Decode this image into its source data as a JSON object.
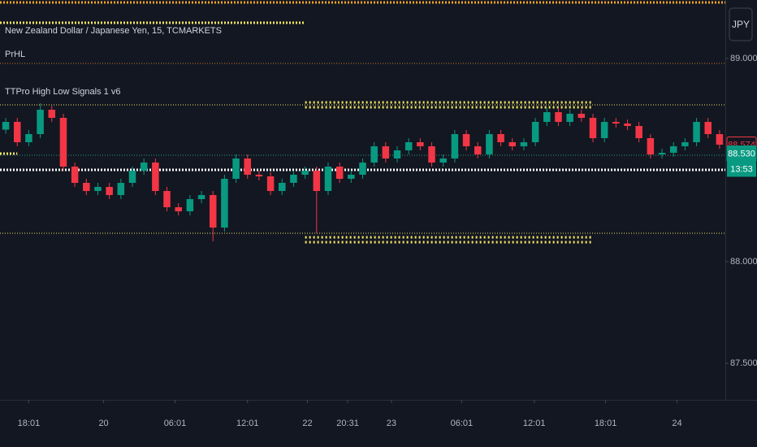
{
  "chart_data": {
    "type": "candlestick",
    "title": "New Zealand Dollar / Japanese Yen, 15, TCMARKETS",
    "indicators": [
      "PrHL",
      "TTPro High Low Signals 1 v6"
    ],
    "currency": "JPY",
    "up_color": "#089981",
    "down_color": "#f23645",
    "open": [
      88.65,
      88.688,
      88.588,
      88.628,
      88.748,
      88.708,
      88.468,
      88.388,
      88.348,
      88.368,
      88.328,
      88.388,
      88.448,
      88.488,
      88.348,
      88.268,
      88.248,
      88.308,
      88.328,
      88.168,
      88.408,
      88.508,
      88.428,
      88.42,
      88.348,
      88.388,
      88.428,
      88.448,
      88.348,
      88.468,
      88.408,
      88.428,
      88.488,
      88.568,
      88.508,
      88.548,
      88.588,
      88.568,
      88.488,
      88.508,
      88.628,
      88.568,
      88.528,
      88.628,
      88.588,
      88.568,
      88.588,
      88.688,
      88.736,
      88.688,
      88.728,
      88.708,
      88.608,
      88.688,
      88.68,
      88.668,
      88.608,
      88.528,
      88.536,
      88.568,
      88.588,
      88.688,
      88.628
    ],
    "high": [
      88.708,
      88.708,
      88.648,
      88.78,
      88.768,
      88.728,
      88.488,
      88.408,
      88.388,
      88.388,
      88.408,
      88.468,
      88.508,
      88.508,
      88.368,
      88.288,
      88.328,
      88.348,
      88.348,
      88.428,
      88.528,
      88.528,
      88.448,
      88.44,
      88.408,
      88.448,
      88.468,
      88.468,
      88.488,
      88.488,
      88.448,
      88.508,
      88.588,
      88.588,
      88.568,
      88.608,
      88.608,
      88.588,
      88.528,
      88.648,
      88.648,
      88.588,
      88.648,
      88.648,
      88.608,
      88.608,
      88.708,
      88.756,
      88.756,
      88.748,
      88.748,
      88.728,
      88.708,
      88.708,
      88.7,
      88.688,
      88.628,
      88.556,
      88.588,
      88.608,
      88.708,
      88.708,
      88.648
    ],
    "low": [
      88.63,
      88.568,
      88.568,
      88.608,
      88.688,
      88.448,
      88.368,
      88.328,
      88.328,
      88.308,
      88.308,
      88.368,
      88.428,
      88.328,
      88.248,
      88.228,
      88.228,
      88.288,
      88.1,
      88.148,
      88.388,
      88.408,
      88.4,
      88.328,
      88.328,
      88.368,
      88.408,
      88.14,
      88.328,
      88.388,
      88.388,
      88.408,
      88.468,
      88.488,
      88.488,
      88.528,
      88.548,
      88.468,
      88.468,
      88.488,
      88.548,
      88.508,
      88.508,
      88.568,
      88.548,
      88.548,
      88.568,
      88.668,
      88.668,
      88.668,
      88.688,
      88.588,
      88.588,
      88.66,
      88.648,
      88.588,
      88.508,
      88.508,
      88.516,
      88.548,
      88.568,
      88.608,
      88.556
    ],
    "close": [
      88.688,
      88.588,
      88.628,
      88.748,
      88.708,
      88.468,
      88.388,
      88.348,
      88.368,
      88.328,
      88.388,
      88.448,
      88.488,
      88.348,
      88.268,
      88.248,
      88.308,
      88.328,
      88.168,
      88.408,
      88.508,
      88.428,
      88.42,
      88.348,
      88.388,
      88.428,
      88.448,
      88.348,
      88.468,
      88.408,
      88.428,
      88.488,
      88.568,
      88.508,
      88.548,
      88.588,
      88.568,
      88.488,
      88.508,
      88.628,
      88.568,
      88.528,
      88.628,
      88.588,
      88.568,
      88.588,
      88.688,
      88.736,
      88.688,
      88.728,
      88.708,
      88.608,
      88.688,
      88.68,
      88.668,
      88.608,
      88.528,
      88.536,
      88.568,
      88.588,
      88.688,
      88.628,
      88.576
    ],
    "xlim": [
      -0.5,
      62.5
    ],
    "xticks": [
      {
        "value": 2.0,
        "label": "18:01"
      },
      {
        "value": 8.5,
        "label": "20"
      },
      {
        "value": 14.7,
        "label": "06:01"
      },
      {
        "value": 21.0,
        "label": "12:01"
      },
      {
        "value": 26.2,
        "label": "22"
      },
      {
        "value": 29.7,
        "label": "20:31"
      },
      {
        "value": 33.5,
        "label": "23"
      },
      {
        "value": 39.6,
        "label": "06:01"
      },
      {
        "value": 45.9,
        "label": "12:01"
      },
      {
        "value": 52.1,
        "label": "18:01"
      },
      {
        "value": 58.3,
        "label": "24"
      }
    ],
    "ylim": [
      87.32,
      89.288
    ],
    "yticks": [
      {
        "value": 87.5,
        "label": "87.500"
      },
      {
        "value": 88.0,
        "label": "88.000"
      },
      {
        "value": 89.0,
        "label": "89.000"
      }
    ],
    "levels": [
      {
        "value": 89.276,
        "color": "#f5a623",
        "style": "dots",
        "from": -0.5,
        "to": 62.5
      },
      {
        "value": 89.176,
        "color": "#f5e663",
        "style": "dots",
        "from": -0.5,
        "to": 26
      },
      {
        "value": 88.976,
        "color": "#c8791f",
        "style": "dotted",
        "from": -0.5,
        "to": 62.5
      },
      {
        "value": 88.772,
        "color": "#f5e663",
        "style": "dotted",
        "from": -0.5,
        "to": 62.5
      },
      {
        "value": 88.772,
        "color": "#f5e663",
        "style": "diamonds",
        "from": 26,
        "to": 50.9
      },
      {
        "value": 88.532,
        "color": "#f5e663",
        "style": "dots",
        "from": -0.5,
        "to": 1
      },
      {
        "value": 88.524,
        "color": "#2a9d7f",
        "style": "dotted",
        "from": -0.5,
        "to": 62.5
      },
      {
        "value": 88.452,
        "color": "#ffffff",
        "style": "dots",
        "from": -0.5,
        "to": 62.5
      },
      {
        "value": 88.14,
        "color": "#f5e663",
        "style": "dotted",
        "from": -0.5,
        "to": 62.5
      },
      {
        "value": 88.108,
        "color": "#f5e663",
        "style": "diamonds",
        "from": 26,
        "to": 50.9
      }
    ],
    "price_labels": [
      {
        "value": 88.574,
        "color": "#f23645",
        "filled": false
      },
      {
        "value": 88.53,
        "label": "88.530",
        "color": "#089981",
        "filled": true
      }
    ],
    "countdown": "13:53"
  }
}
